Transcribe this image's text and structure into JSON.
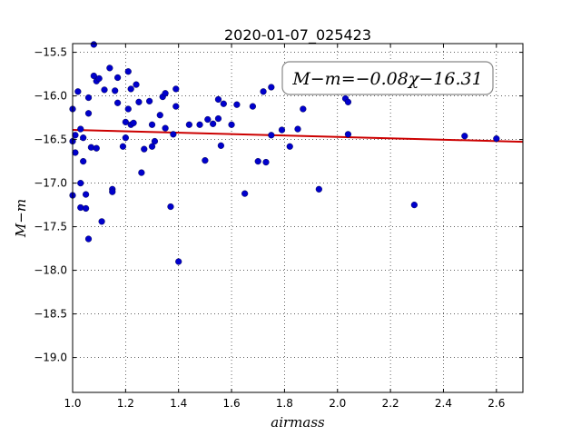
{
  "chart_data": {
    "type": "scatter",
    "title": "2020-01-07_025423",
    "xlabel": "airmass",
    "ylabel": "M−m",
    "xlim": [
      1.0,
      2.7
    ],
    "ylim": [
      -19.4,
      -15.4
    ],
    "y_inverted": true,
    "grid": true,
    "x_ticks": [
      1.0,
      1.2,
      1.4,
      1.6,
      1.8,
      2.0,
      2.2,
      2.4,
      2.6
    ],
    "x_tick_labels": [
      "1.0",
      "1.2",
      "1.4",
      "1.6",
      "1.8",
      "2.0",
      "2.2",
      "2.4",
      "2.6"
    ],
    "y_ticks": [
      -15.5,
      -16.0,
      -16.5,
      -17.0,
      -17.5,
      -18.0,
      -18.5,
      -19.0
    ],
    "y_tick_labels": [
      "−15.5",
      "−16.0",
      "−16.5",
      "−17.0",
      "−17.5",
      "−18.0",
      "−18.5",
      "−19.0"
    ],
    "annotation": "M−m=−0.08χ−16.31",
    "fit": {
      "slope": -0.08,
      "intercept": -16.31,
      "x_range": [
        1.0,
        2.7
      ],
      "color": "#cc0000"
    },
    "points_color": "#0000cc",
    "points": [
      [
        1.0,
        -16.15
      ],
      [
        1.0,
        -16.52
      ],
      [
        1.01,
        -16.45
      ],
      [
        1.01,
        -16.65
      ],
      [
        1.0,
        -17.14
      ],
      [
        1.02,
        -15.95
      ],
      [
        1.03,
        -16.38
      ],
      [
        1.04,
        -16.48
      ],
      [
        1.04,
        -16.75
      ],
      [
        1.03,
        -17.0
      ],
      [
        1.03,
        -17.28
      ],
      [
        1.05,
        -17.29
      ],
      [
        1.05,
        -17.13
      ],
      [
        1.06,
        -17.64
      ],
      [
        1.06,
        -16.2
      ],
      [
        1.06,
        -16.02
      ],
      [
        1.07,
        -16.59
      ],
      [
        1.08,
        -15.41
      ],
      [
        1.08,
        -15.77
      ],
      [
        1.09,
        -15.83
      ],
      [
        1.1,
        -15.8
      ],
      [
        1.09,
        -16.6
      ],
      [
        1.11,
        -17.44
      ],
      [
        1.12,
        -15.93
      ],
      [
        1.14,
        -15.68
      ],
      [
        1.15,
        -17.07
      ],
      [
        1.15,
        -17.1
      ],
      [
        1.16,
        -15.94
      ],
      [
        1.17,
        -15.79
      ],
      [
        1.17,
        -16.08
      ],
      [
        1.19,
        -16.58
      ],
      [
        1.2,
        -16.48
      ],
      [
        1.2,
        -16.3
      ],
      [
        1.21,
        -15.72
      ],
      [
        1.21,
        -16.15
      ],
      [
        1.22,
        -15.92
      ],
      [
        1.22,
        -16.33
      ],
      [
        1.23,
        -16.31
      ],
      [
        1.24,
        -15.87
      ],
      [
        1.25,
        -16.07
      ],
      [
        1.26,
        -16.88
      ],
      [
        1.27,
        -16.61
      ],
      [
        1.29,
        -16.06
      ],
      [
        1.3,
        -16.33
      ],
      [
        1.3,
        -16.58
      ],
      [
        1.31,
        -16.52
      ],
      [
        1.33,
        -16.22
      ],
      [
        1.34,
        -16.01
      ],
      [
        1.35,
        -15.97
      ],
      [
        1.35,
        -16.37
      ],
      [
        1.37,
        -17.27
      ],
      [
        1.38,
        -16.44
      ],
      [
        1.39,
        -15.92
      ],
      [
        1.39,
        -16.12
      ],
      [
        1.4,
        -17.9
      ],
      [
        1.44,
        -16.33
      ],
      [
        1.48,
        -16.33
      ],
      [
        1.5,
        -16.74
      ],
      [
        1.51,
        -16.27
      ],
      [
        1.53,
        -16.32
      ],
      [
        1.55,
        -16.04
      ],
      [
        1.55,
        -16.26
      ],
      [
        1.56,
        -16.57
      ],
      [
        1.57,
        -16.09
      ],
      [
        1.6,
        -16.33
      ],
      [
        1.62,
        -16.1
      ],
      [
        1.65,
        -17.12
      ],
      [
        1.68,
        -16.12
      ],
      [
        1.7,
        -16.75
      ],
      [
        1.72,
        -15.95
      ],
      [
        1.73,
        -16.76
      ],
      [
        1.75,
        -15.9
      ],
      [
        1.75,
        -16.45
      ],
      [
        1.79,
        -16.39
      ],
      [
        1.82,
        -16.58
      ],
      [
        1.85,
        -16.38
      ],
      [
        1.87,
        -16.15
      ],
      [
        1.93,
        -17.07
      ],
      [
        2.03,
        -16.03
      ],
      [
        2.04,
        -16.07
      ],
      [
        2.04,
        -16.44
      ],
      [
        2.29,
        -17.25
      ],
      [
        2.48,
        -16.46
      ],
      [
        2.6,
        -16.49
      ]
    ]
  }
}
